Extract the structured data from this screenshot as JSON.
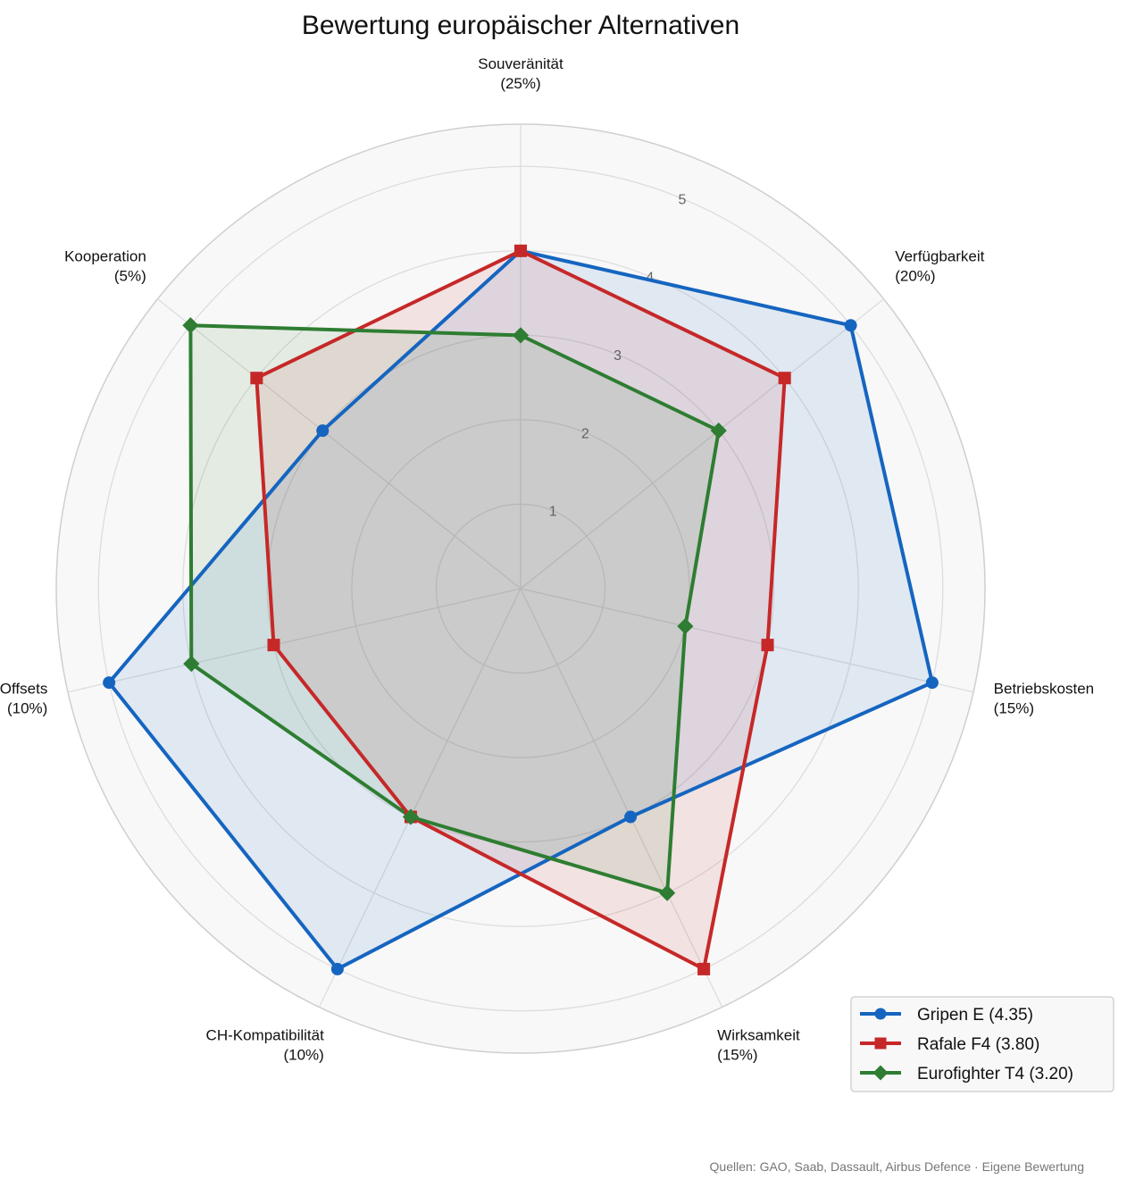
{
  "chart_data": {
    "type": "radar",
    "title": "Bewertung europäischer Alternativen",
    "source": "Quellen: GAO, Saab, Dassault, Airbus Defence · Eigene Bewertung",
    "rlim": [
      0,
      5.5
    ],
    "ticks": [
      1,
      2,
      3,
      4,
      5
    ],
    "grid": true,
    "legend_position": "bottom-right",
    "categories": [
      {
        "name": "Souveränität",
        "weight": "(25%)"
      },
      {
        "name": "Verfügbarkeit",
        "weight": "(20%)"
      },
      {
        "name": "Betriebskosten",
        "weight": "(15%)"
      },
      {
        "name": "Wirksamkeit",
        "weight": "(15%)"
      },
      {
        "name": "CH-Kompatibilität",
        "weight": "(10%)"
      },
      {
        "name": "Offsets",
        "weight": "(10%)"
      },
      {
        "name": "Kooperation",
        "weight": "(5%)"
      }
    ],
    "series": [
      {
        "name": "Gripen E (4.35)",
        "color": "#1565c0",
        "marker": "circle",
        "values": [
          4,
          5,
          5,
          3,
          5,
          5,
          3
        ]
      },
      {
        "name": "Rafale F4 (3.80)",
        "color": "#c62828",
        "marker": "square",
        "values": [
          4,
          4,
          3,
          5,
          3,
          3,
          4
        ]
      },
      {
        "name": "Eurofighter T4 (3.20)",
        "color": "#2e7d32",
        "marker": "diamond",
        "values": [
          3,
          3,
          2,
          4,
          3,
          4,
          5
        ]
      }
    ]
  }
}
